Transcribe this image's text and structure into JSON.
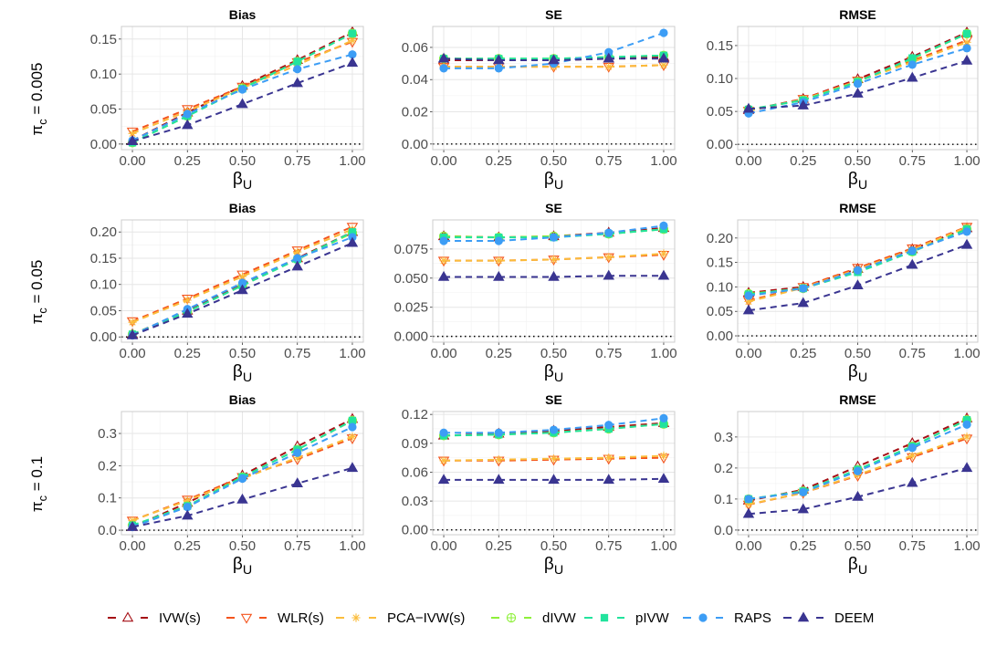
{
  "chart_data": {
    "type": "line",
    "x": [
      0,
      0.25,
      0.5,
      0.75,
      1.0
    ],
    "xlim": [
      -0.05,
      1.05
    ],
    "x_ticks": [
      "0.00",
      "0.25",
      "0.50",
      "0.75",
      "1.00"
    ],
    "xlabel": {
      "symbol": "β",
      "subscript": "U"
    },
    "grid": true,
    "legend_position": "bottom",
    "methods": [
      {
        "name": "IVW(s)",
        "color": "#a50f15",
        "shape": "triangle-up-open"
      },
      {
        "name": "WLR(s)",
        "color": "#f4541d",
        "shape": "triangle-down-open"
      },
      {
        "name": "PCA−IVW(s)",
        "color": "#fbbd3c",
        "shape": "asterisk"
      },
      {
        "name": "dIVW",
        "color": "#8ef03a",
        "shape": "circle-plus"
      },
      {
        "name": "pIVW",
        "color": "#22e39d",
        "shape": "square"
      },
      {
        "name": "RAPS",
        "color": "#3c9df5",
        "shape": "circle"
      },
      {
        "name": "DEEM",
        "color": "#3a3591",
        "shape": "triangle-up"
      }
    ],
    "rows": [
      {
        "label": {
          "symbol": "π",
          "subscript": "c",
          "value": "= 0.005"
        }
      },
      {
        "label": {
          "symbol": "π",
          "subscript": "c",
          "value": "= 0.05"
        }
      },
      {
        "label": {
          "symbol": "π",
          "subscript": "c",
          "value": "= 0.1"
        }
      }
    ],
    "panels": [
      {
        "row": 0,
        "col": 0,
        "title": "Bias",
        "ylim": [
          -0.008,
          0.168
        ],
        "y_ticks": [
          0,
          0.05,
          0.1,
          0.15
        ],
        "y_tick_labels": [
          "0.00",
          "0.05",
          "0.10",
          "0.15"
        ],
        "series": [
          [
            0.005,
            0.045,
            0.083,
            0.12,
            0.16
          ],
          [
            0.018,
            0.05,
            0.082,
            0.117,
            0.146
          ],
          [
            0.015,
            0.047,
            0.08,
            0.113,
            0.148
          ],
          [
            0.002,
            0.04,
            0.08,
            0.118,
            0.158
          ],
          [
            0.002,
            0.04,
            0.079,
            0.118,
            0.158
          ],
          [
            0.005,
            0.043,
            0.078,
            0.107,
            0.128
          ],
          [
            0.004,
            0.027,
            0.057,
            0.087,
            0.116
          ]
        ]
      },
      {
        "row": 0,
        "col": 1,
        "title": "SE",
        "ylim": [
          -0.0035,
          0.073
        ],
        "y_ticks": [
          0,
          0.02,
          0.04,
          0.06
        ],
        "y_tick_labels": [
          "0.00",
          "0.02",
          "0.04",
          "0.06"
        ],
        "series": [
          [
            0.052,
            0.052,
            0.052,
            0.053,
            0.054
          ],
          [
            0.048,
            0.048,
            0.048,
            0.048,
            0.049
          ],
          [
            0.048,
            0.048,
            0.048,
            0.048,
            0.049
          ],
          [
            0.053,
            0.053,
            0.053,
            0.054,
            0.055
          ],
          [
            0.053,
            0.053,
            0.053,
            0.054,
            0.055
          ],
          [
            0.047,
            0.047,
            0.05,
            0.057,
            0.069
          ],
          [
            0.053,
            0.052,
            0.052,
            0.053,
            0.053
          ]
        ]
      },
      {
        "row": 0,
        "col": 2,
        "title": "RMSE",
        "ylim": [
          -0.008,
          0.179
        ],
        "y_ticks": [
          0,
          0.05,
          0.1,
          0.15
        ],
        "y_tick_labels": [
          "0.00",
          "0.05",
          "0.10",
          "0.15"
        ],
        "series": [
          [
            0.052,
            0.069,
            0.099,
            0.133,
            0.17
          ],
          [
            0.051,
            0.069,
            0.097,
            0.127,
            0.158
          ],
          [
            0.051,
            0.068,
            0.096,
            0.125,
            0.155
          ],
          [
            0.053,
            0.067,
            0.095,
            0.13,
            0.168
          ],
          [
            0.053,
            0.067,
            0.095,
            0.131,
            0.168
          ],
          [
            0.047,
            0.064,
            0.092,
            0.121,
            0.146
          ],
          [
            0.054,
            0.059,
            0.077,
            0.101,
            0.127
          ]
        ]
      },
      {
        "row": 1,
        "col": 0,
        "title": "Bias",
        "ylim": [
          -0.01,
          0.223
        ],
        "y_ticks": [
          0,
          0.05,
          0.1,
          0.15,
          0.2
        ],
        "y_tick_labels": [
          "0.00",
          "0.05",
          "0.10",
          "0.15",
          "0.20"
        ],
        "series": [
          [
            0.005,
            0.05,
            0.1,
            0.15,
            0.2
          ],
          [
            0.03,
            0.073,
            0.119,
            0.165,
            0.21
          ],
          [
            0.028,
            0.07,
            0.115,
            0.162,
            0.205
          ],
          [
            0.005,
            0.048,
            0.098,
            0.148,
            0.198
          ],
          [
            0.005,
            0.048,
            0.098,
            0.148,
            0.2
          ],
          [
            0.003,
            0.053,
            0.103,
            0.15,
            0.19
          ],
          [
            0.003,
            0.044,
            0.089,
            0.134,
            0.179
          ]
        ]
      },
      {
        "row": 1,
        "col": 1,
        "title": "SE",
        "ylim": [
          -0.005,
          0.1
        ],
        "y_ticks": [
          0,
          0.025,
          0.05,
          0.075
        ],
        "y_tick_labels": [
          "0.000",
          "0.025",
          "0.050",
          "0.075"
        ],
        "series": [
          [
            0.086,
            0.085,
            0.086,
            0.089,
            0.093
          ],
          [
            0.065,
            0.065,
            0.066,
            0.068,
            0.07
          ],
          [
            0.065,
            0.065,
            0.066,
            0.068,
            0.071
          ],
          [
            0.086,
            0.085,
            0.086,
            0.088,
            0.092
          ],
          [
            0.085,
            0.085,
            0.085,
            0.088,
            0.092
          ],
          [
            0.082,
            0.082,
            0.085,
            0.089,
            0.095
          ],
          [
            0.051,
            0.051,
            0.051,
            0.052,
            0.052
          ]
        ]
      },
      {
        "row": 1,
        "col": 2,
        "title": "RMSE",
        "ylim": [
          -0.013,
          0.237
        ],
        "y_ticks": [
          0,
          0.05,
          0.1,
          0.15,
          0.2
        ],
        "y_tick_labels": [
          "0.00",
          "0.05",
          "0.10",
          "0.15",
          "0.20"
        ],
        "series": [
          [
            0.088,
            0.1,
            0.137,
            0.177,
            0.22
          ],
          [
            0.072,
            0.1,
            0.139,
            0.179,
            0.223
          ],
          [
            0.07,
            0.098,
            0.136,
            0.176,
            0.222
          ],
          [
            0.086,
            0.097,
            0.132,
            0.172,
            0.218
          ],
          [
            0.085,
            0.097,
            0.13,
            0.172,
            0.218
          ],
          [
            0.082,
            0.097,
            0.134,
            0.174,
            0.213
          ],
          [
            0.052,
            0.067,
            0.103,
            0.145,
            0.186
          ]
        ]
      },
      {
        "row": 2,
        "col": 0,
        "title": "Bias",
        "ylim": [
          -0.014,
          0.368
        ],
        "y_ticks": [
          0,
          0.1,
          0.2,
          0.3
        ],
        "y_tick_labels": [
          "0.0",
          "0.1",
          "0.2",
          "0.3"
        ],
        "series": [
          [
            0.01,
            0.085,
            0.17,
            0.26,
            0.345
          ],
          [
            0.03,
            0.095,
            0.165,
            0.22,
            0.285
          ],
          [
            0.03,
            0.092,
            0.16,
            0.225,
            0.29
          ],
          [
            0.015,
            0.075,
            0.165,
            0.25,
            0.34
          ],
          [
            0.015,
            0.075,
            0.165,
            0.25,
            0.34
          ],
          [
            0.01,
            0.072,
            0.16,
            0.24,
            0.32
          ],
          [
            0.01,
            0.045,
            0.095,
            0.145,
            0.193
          ]
        ]
      },
      {
        "row": 2,
        "col": 1,
        "title": "SE",
        "ylim": [
          -0.005,
          0.123
        ],
        "y_ticks": [
          0,
          0.03,
          0.06,
          0.09,
          0.12
        ],
        "y_tick_labels": [
          "0.00",
          "0.03",
          "0.06",
          "0.09",
          "0.12"
        ],
        "series": [
          [
            0.098,
            0.1,
            0.103,
            0.107,
            0.111
          ],
          [
            0.072,
            0.072,
            0.073,
            0.074,
            0.075
          ],
          [
            0.072,
            0.073,
            0.074,
            0.075,
            0.077
          ],
          [
            0.098,
            0.099,
            0.101,
            0.105,
            0.11
          ],
          [
            0.098,
            0.099,
            0.101,
            0.105,
            0.11
          ],
          [
            0.101,
            0.101,
            0.104,
            0.109,
            0.116
          ],
          [
            0.052,
            0.052,
            0.052,
            0.052,
            0.053
          ]
        ]
      },
      {
        "row": 2,
        "col": 2,
        "title": "RMSE",
        "ylim": [
          -0.015,
          0.382
        ],
        "y_ticks": [
          0,
          0.1,
          0.2,
          0.3
        ],
        "y_tick_labels": [
          "0.0",
          "0.1",
          "0.2",
          "0.3"
        ],
        "series": [
          [
            0.095,
            0.13,
            0.205,
            0.28,
            0.36
          ],
          [
            0.082,
            0.12,
            0.175,
            0.235,
            0.295
          ],
          [
            0.083,
            0.12,
            0.178,
            0.24,
            0.3
          ],
          [
            0.1,
            0.125,
            0.195,
            0.27,
            0.355
          ],
          [
            0.1,
            0.125,
            0.195,
            0.27,
            0.355
          ],
          [
            0.1,
            0.122,
            0.19,
            0.265,
            0.34
          ],
          [
            0.052,
            0.067,
            0.107,
            0.152,
            0.2
          ]
        ]
      }
    ]
  }
}
